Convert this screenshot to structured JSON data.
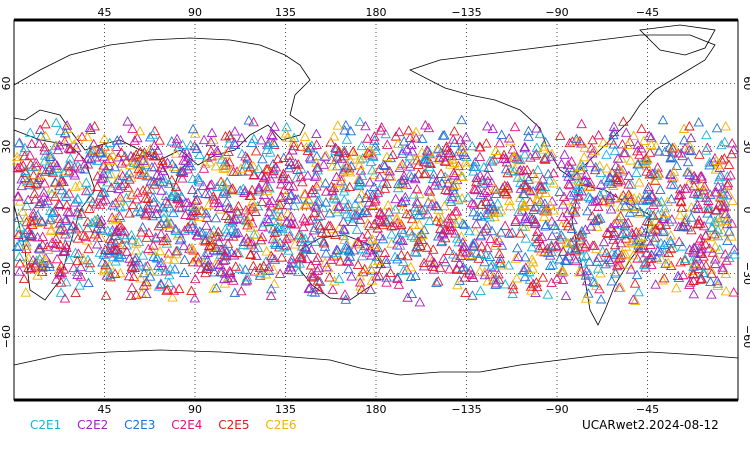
{
  "map": {
    "projection": "cylindrical-equidistant",
    "center_longitude": 180,
    "top_ticks": [
      "45",
      "90",
      "135",
      "180",
      "−135",
      "−90",
      "−45"
    ],
    "bottom_ticks": [
      "45",
      "90",
      "135",
      "180",
      "−135",
      "−90",
      "−45"
    ],
    "left_ticks": [
      "60",
      "30",
      "0",
      "−30",
      "−60"
    ],
    "right_ticks": [
      "60",
      "30",
      "0",
      "−30",
      "−60"
    ],
    "grid": "dotted",
    "marker": "triangle-outline",
    "observation_band_latitude": [
      -45,
      45
    ]
  },
  "legend": [
    {
      "label": "C2E1",
      "color": "#19b2d9"
    },
    {
      "label": "C2E2",
      "color": "#a020c8"
    },
    {
      "label": "C2E3",
      "color": "#1f6fd6"
    },
    {
      "label": "C2E4",
      "color": "#e0117a"
    },
    {
      "label": "C2E5",
      "color": "#e01c1c"
    },
    {
      "label": "C2E6",
      "color": "#f0b400"
    }
  ],
  "source_label": "UCARwet2.2024-08-12"
}
